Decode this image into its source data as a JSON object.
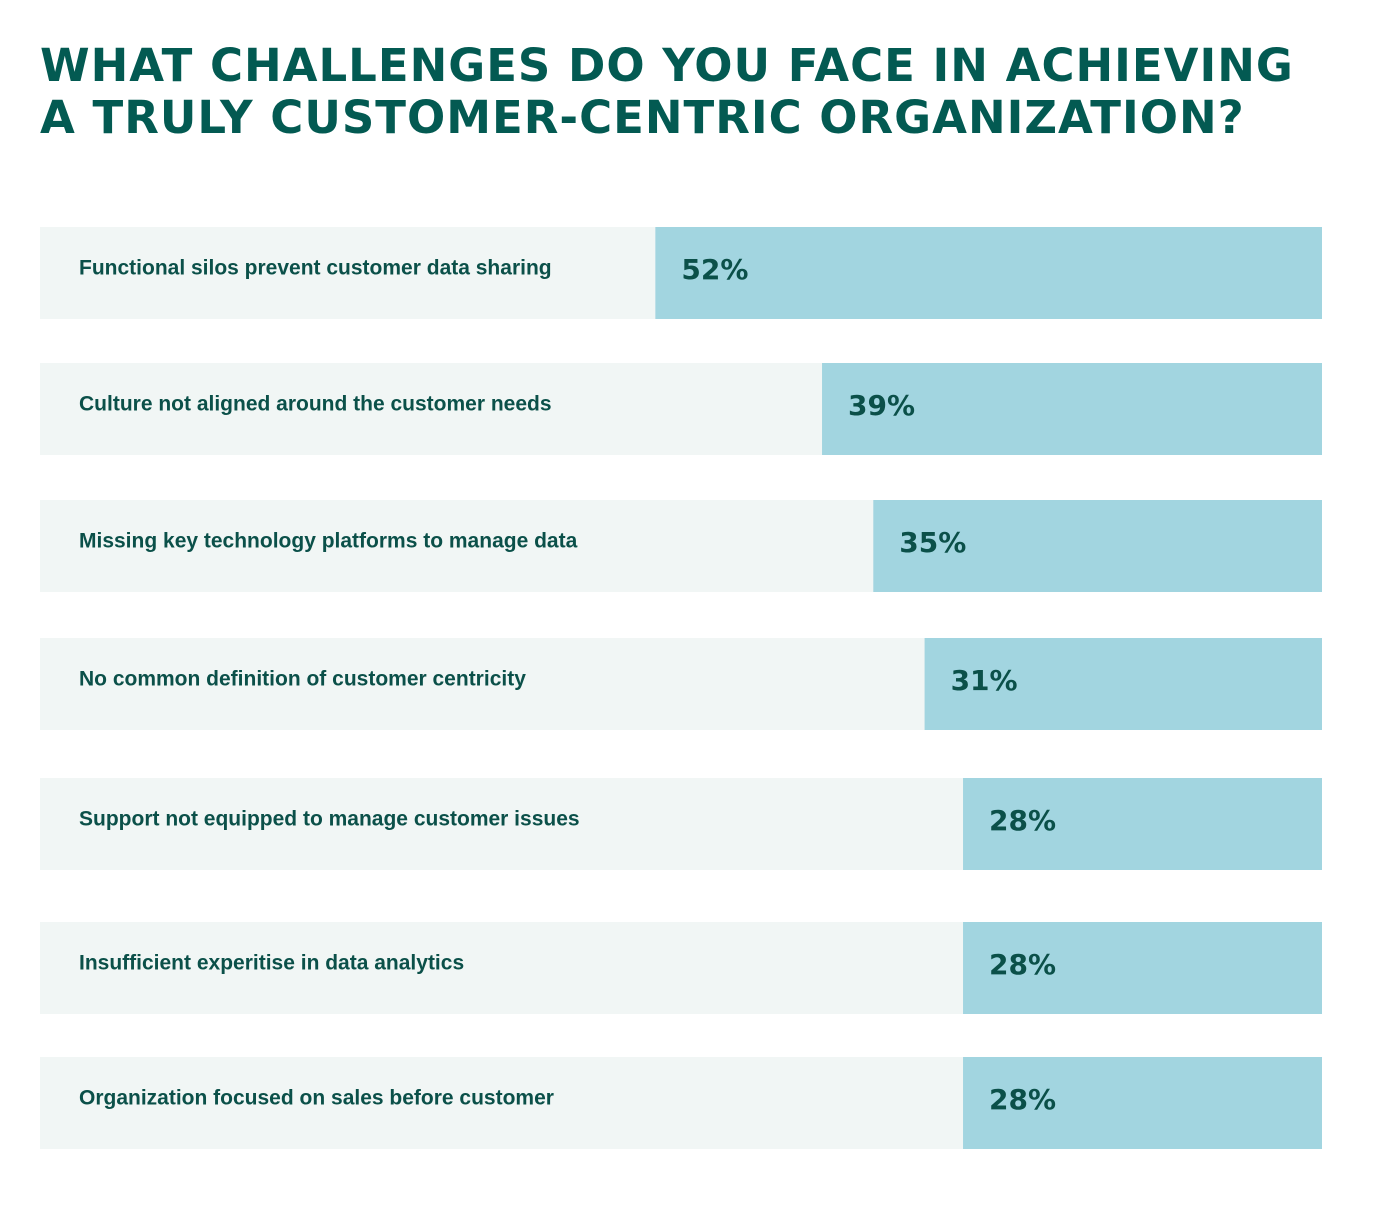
{
  "title_lines": [
    "WHAT CHALLENGES DO YOU FACE IN ACHIEVING",
    "A TRULY CUSTOMER-CENTRIC ORGANIZATION?"
  ],
  "colors": {
    "title": "#035a52",
    "label": "#0b5049",
    "track": "#f1f6f5",
    "bar": "#a2d5e0"
  },
  "chart_data": {
    "type": "bar",
    "orientation": "horizontal",
    "title": "WHAT CHALLENGES DO YOU FACE IN ACHIEVING A TRULY CUSTOMER-CENTRIC ORGANIZATION?",
    "categories": [
      "Functional silos prevent customer data sharing",
      "Culture not aligned around the customer needs",
      "Missing key technology platforms to manage data",
      "No common definition of customer centricity",
      "Support not equipped to manage customer issues",
      "Insufficient experitise in data analytics",
      "Organization focused on sales before customer"
    ],
    "values": [
      52,
      39,
      35,
      31,
      28,
      28,
      28
    ],
    "value_labels": [
      "52%",
      "39%",
      "35%",
      "31%",
      "28%",
      "28%",
      "28%"
    ],
    "unit": "%",
    "xlim": [
      0,
      100
    ],
    "grid": false,
    "legend": "none"
  }
}
